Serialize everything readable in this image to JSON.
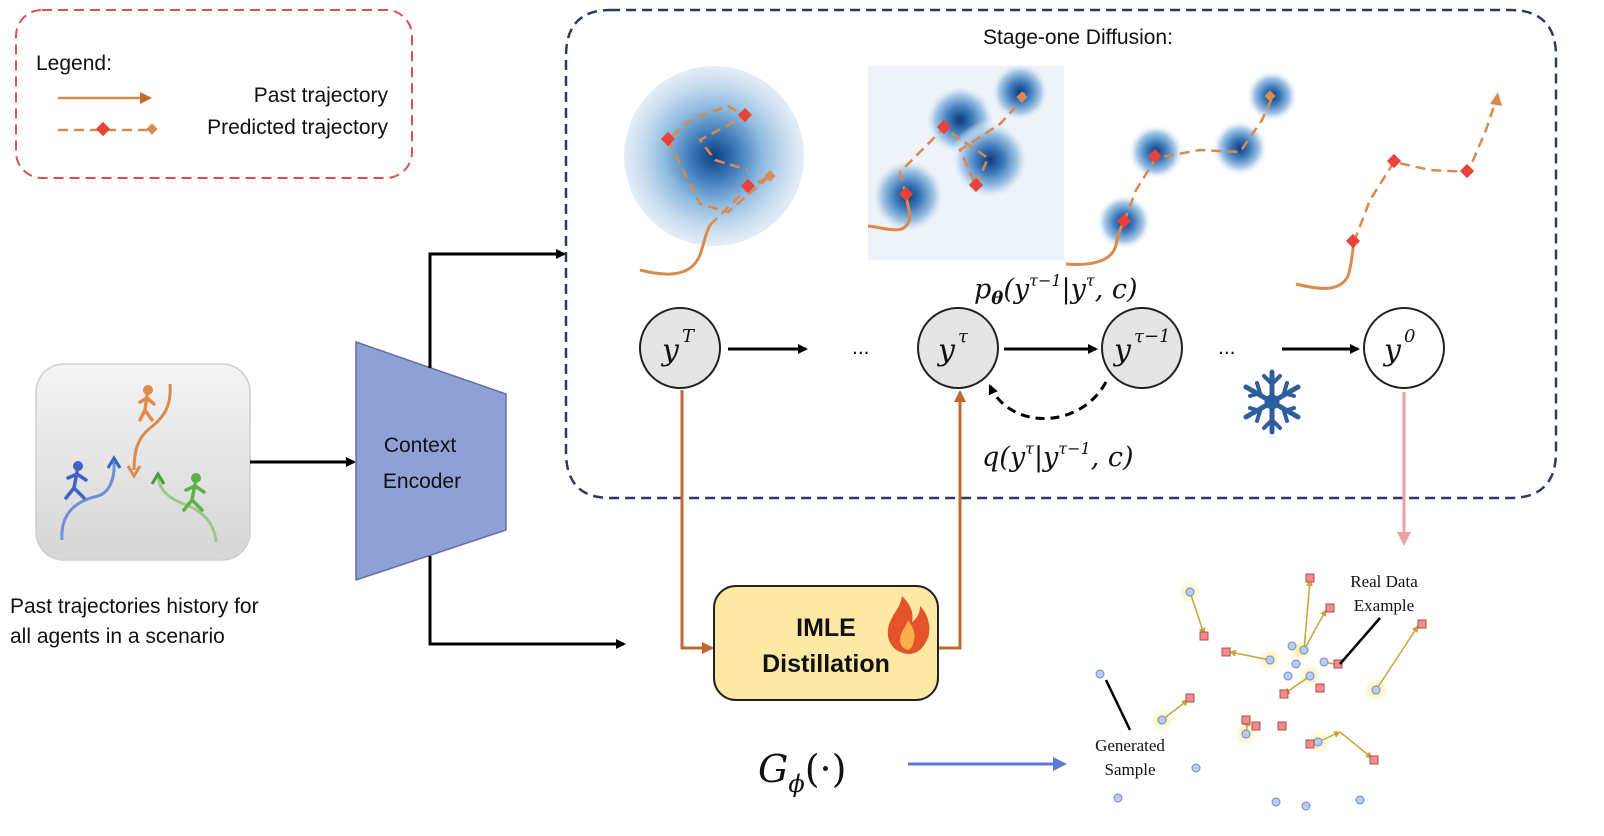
{
  "legend": {
    "title": "Legend:",
    "past_label": "Past trajectory",
    "predicted_label": "Predicted trajectory"
  },
  "stage_one": {
    "title": "Stage-one Diffusion:",
    "node_yT": "y",
    "node_yT_sup": "T",
    "node_ytau": "y",
    "node_ytau_sup": "τ",
    "node_ytau1": "y",
    "node_ytau1_sup": "τ−1",
    "node_y0": "y",
    "node_y0_sup": "0",
    "dots_1": "...",
    "dots_2": "...",
    "p_theta": "pθ(yτ−1|yτ, c)",
    "q_label": "q(yτ|yτ−1, c)"
  },
  "encoder": {
    "line1": "Context",
    "line2": "Encoder"
  },
  "scene": {
    "caption_line1": "Past trajectories history for",
    "caption_line2": "all agents in a scenario"
  },
  "imle": {
    "line1": "IMLE",
    "line2": "Distillation"
  },
  "generator": {
    "label": "Gϕ(·)"
  },
  "samples": {
    "real_line1": "Real Data",
    "real_line2": "Example",
    "gen_line1": "Generated",
    "gen_line2": "Sample"
  },
  "colors": {
    "legend_border": "#e0504a",
    "stage_border": "#2b3a5e",
    "encoder_fill": "#8fa0d6",
    "imle_fill": "#fde9a4",
    "trajectory": "#d98a4d",
    "predicted_marker": "#e8433a",
    "node_fill": "#e5e5e5",
    "snow": "#2f5c9c",
    "fire": "#e4532b",
    "gen_arrow": "#5b7bd5",
    "real_arrow": "#ef9fa6"
  }
}
